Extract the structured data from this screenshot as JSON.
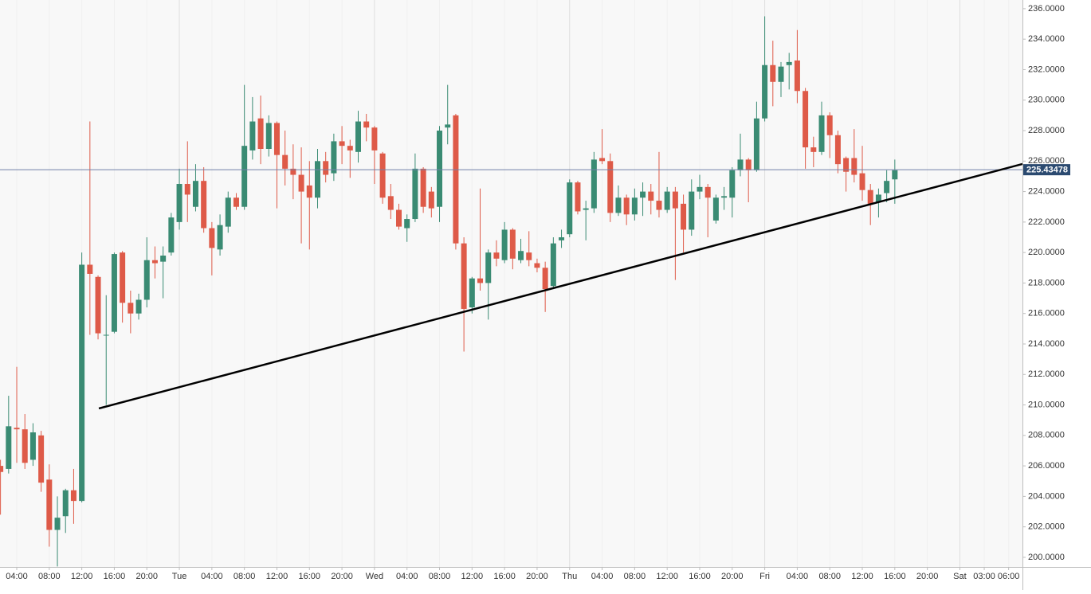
{
  "chart_data": {
    "type": "candlestick",
    "x": [
      2,
      3,
      4,
      5,
      6,
      7,
      8,
      9,
      10,
      11,
      12,
      13,
      14,
      15,
      16,
      17,
      18,
      19,
      20,
      21,
      22,
      23,
      24,
      25,
      26,
      27,
      28,
      29,
      30,
      31,
      32,
      33,
      34,
      35,
      36,
      37,
      38,
      39,
      40,
      41,
      42,
      43,
      44,
      45,
      46,
      47,
      48,
      49,
      50,
      51,
      52,
      53,
      54,
      55,
      56,
      57,
      58,
      59,
      60,
      61,
      62,
      63,
      64,
      65,
      66,
      67,
      68,
      69,
      70,
      71,
      72,
      73,
      74,
      75,
      76,
      77,
      78,
      79,
      80,
      81,
      82,
      83,
      84,
      85,
      86,
      87,
      88,
      89,
      90,
      91,
      92,
      93,
      94,
      95,
      96,
      97,
      98,
      99,
      100,
      101,
      102,
      103,
      104,
      105,
      106,
      107,
      108,
      109,
      110,
      111,
      112
    ],
    "open": [
      206.0,
      205.8,
      208.5,
      208.4,
      206.4,
      208.0,
      205.1,
      201.8,
      202.7,
      204.4,
      203.7,
      219.2,
      218.4,
      214.6,
      214.8,
      220.0,
      216.7,
      216.0,
      216.9,
      219.5,
      219.4,
      220.0,
      222.0,
      224.5,
      223.0,
      224.7,
      221.6,
      220.2,
      221.7,
      223.6,
      223.0,
      226.7,
      228.8,
      226.8,
      228.5,
      226.4,
      225.5,
      225.1,
      224.4,
      223.6,
      226.0,
      225.2,
      227.3,
      227.0,
      226.6,
      228.6,
      228.2,
      226.5,
      223.7,
      222.8,
      221.6,
      222.2,
      225.5,
      224.0,
      223.0,
      228.2,
      229.0,
      220.6,
      216.4,
      218.3,
      218.0,
      220.0,
      219.5,
      221.5,
      219.5,
      220.0,
      219.3,
      219.0,
      217.8,
      220.8,
      221.2,
      224.6,
      222.8,
      222.9,
      226.2,
      226.0,
      222.6,
      223.6,
      222.5,
      223.6,
      224.0,
      223.4,
      222.8,
      224.0,
      223.2,
      221.5,
      224.0,
      224.3,
      222.1,
      223.6,
      223.6,
      225.4,
      226.1,
      225.4,
      228.8,
      232.3,
      231.2,
      232.3,
      232.6,
      230.6,
      226.9,
      226.6,
      229.0,
      227.7,
      226.2,
      226.2,
      225.2,
      224.1,
      223.3,
      223.9,
      224.8
    ],
    "high": [
      206.4,
      210.6,
      212.5,
      209.4,
      208.8,
      208.3,
      206.1,
      204.0,
      204.5,
      205.8,
      220.0,
      228.6,
      218.5,
      217.2,
      220.0,
      220.1,
      217.5,
      217.3,
      221.0,
      220.4,
      220.4,
      222.6,
      225.5,
      227.3,
      225.8,
      225.6,
      222.0,
      222.5,
      224.0,
      223.9,
      231.0,
      230.2,
      230.3,
      229.0,
      228.6,
      228.0,
      227.1,
      226.9,
      226.0,
      226.8,
      226.6,
      227.8,
      228.3,
      227.4,
      229.3,
      229.1,
      228.3,
      226.6,
      224.5,
      223.2,
      222.5,
      226.5,
      225.6,
      224.3,
      228.3,
      231.0,
      229.1,
      221.0,
      218.4,
      224.2,
      220.2,
      220.8,
      222.0,
      221.6,
      220.9,
      221.4,
      219.6,
      219.4,
      221.0,
      221.5,
      224.8,
      224.7,
      223.4,
      226.6,
      228.1,
      226.5,
      224.4,
      223.8,
      224.2,
      224.6,
      224.5,
      226.6,
      224.3,
      224.3,
      223.8,
      224.8,
      225.1,
      224.5,
      223.8,
      224.3,
      225.6,
      227.8,
      226.2,
      229.9,
      235.5,
      233.9,
      232.5,
      233.1,
      234.6,
      230.8,
      227.6,
      229.9,
      229.2,
      228.0,
      226.3,
      228.1,
      227.0,
      224.5,
      224.2,
      225.4,
      226.1
    ],
    "low": [
      202.8,
      205.5,
      206.2,
      205.8,
      206.0,
      204.3,
      200.7,
      199.4,
      201.6,
      202.2,
      203.6,
      214.6,
      214.3,
      210.0,
      214.7,
      215.4,
      214.7,
      215.6,
      216.4,
      218.3,
      217.0,
      219.8,
      221.5,
      222.0,
      222.7,
      221.3,
      218.5,
      219.8,
      221.3,
      222.8,
      222.8,
      226.1,
      225.8,
      226.3,
      222.9,
      224.4,
      223.5,
      220.6,
      220.2,
      222.9,
      224.6,
      224.7,
      225.8,
      224.9,
      225.9,
      227.3,
      224.5,
      223.2,
      222.2,
      221.5,
      220.7,
      222.0,
      222.6,
      222.3,
      222.0,
      227.1,
      220.2,
      213.5,
      216.0,
      217.5,
      215.6,
      219.1,
      219.3,
      218.9,
      219.3,
      219.1,
      218.7,
      216.1,
      217.6,
      220.3,
      221.0,
      222.5,
      220.8,
      222.6,
      225.8,
      222.0,
      222.4,
      221.8,
      222.1,
      222.4,
      222.5,
      222.3,
      222.6,
      218.2,
      220.0,
      221.1,
      223.5,
      221.0,
      221.9,
      222.8,
      222.3,
      225.0,
      223.3,
      225.3,
      228.6,
      229.6,
      230.2,
      230.7,
      229.8,
      225.5,
      225.6,
      226.4,
      226.2,
      225.2,
      224.0,
      224.6,
      223.4,
      221.8,
      222.3,
      223.3,
      223.2
    ],
    "close": [
      205.6,
      208.6,
      208.4,
      206.2,
      208.2,
      204.9,
      201.8,
      202.6,
      204.4,
      203.7,
      219.2,
      218.6,
      214.7,
      214.6,
      219.9,
      216.7,
      216.0,
      216.9,
      219.5,
      219.3,
      219.8,
      222.3,
      224.5,
      223.8,
      224.7,
      221.6,
      220.3,
      221.8,
      223.6,
      223.0,
      227.0,
      228.6,
      226.8,
      228.5,
      226.4,
      225.5,
      225.1,
      224.0,
      223.6,
      226.0,
      225.1,
      227.3,
      227.0,
      226.7,
      228.6,
      228.2,
      226.7,
      223.6,
      222.8,
      221.7,
      222.2,
      225.5,
      223.0,
      222.9,
      228.0,
      228.4,
      220.6,
      216.3,
      218.3,
      218.0,
      220.0,
      219.6,
      221.5,
      219.6,
      220.1,
      219.5,
      219.0,
      217.6,
      220.6,
      221.0,
      224.6,
      222.7,
      222.9,
      226.1,
      226.0,
      222.6,
      223.6,
      222.5,
      223.6,
      224.0,
      223.4,
      222.8,
      224.0,
      222.9,
      221.5,
      224.0,
      224.3,
      223.6,
      223.6,
      223.7,
      225.4,
      226.1,
      225.4,
      228.8,
      232.3,
      231.2,
      232.2,
      232.5,
      230.6,
      226.9,
      226.6,
      229.0,
      227.7,
      225.8,
      225.3,
      225.1,
      224.1,
      223.2,
      223.8,
      224.7,
      225.4
    ],
    "up_color": "#3a8b73",
    "down_color": "#de5a48",
    "xlim": [
      1.94,
      127.7
    ],
    "ylim": [
      199.37,
      236.57
    ],
    "xticks": [
      {
        "value": 4,
        "label": "04:00"
      },
      {
        "value": 8,
        "label": "08:00"
      },
      {
        "value": 12,
        "label": "12:00"
      },
      {
        "value": 16,
        "label": "16:00"
      },
      {
        "value": 20,
        "label": "20:00"
      },
      {
        "value": 24,
        "label": "Tue"
      },
      {
        "value": 28,
        "label": "04:00"
      },
      {
        "value": 32,
        "label": "08:00"
      },
      {
        "value": 36,
        "label": "12:00"
      },
      {
        "value": 40,
        "label": "16:00"
      },
      {
        "value": 44,
        "label": "20:00"
      },
      {
        "value": 48,
        "label": "Wed"
      },
      {
        "value": 52,
        "label": "04:00"
      },
      {
        "value": 56,
        "label": "08:00"
      },
      {
        "value": 60,
        "label": "12:00"
      },
      {
        "value": 64,
        "label": "16:00"
      },
      {
        "value": 68,
        "label": "20:00"
      },
      {
        "value": 72,
        "label": "Thu"
      },
      {
        "value": 76,
        "label": "04:00"
      },
      {
        "value": 80,
        "label": "08:00"
      },
      {
        "value": 84,
        "label": "12:00"
      },
      {
        "value": 88,
        "label": "16:00"
      },
      {
        "value": 92,
        "label": "20:00"
      },
      {
        "value": 96,
        "label": "Fri"
      },
      {
        "value": 100,
        "label": "04:00"
      },
      {
        "value": 104,
        "label": "08:00"
      },
      {
        "value": 108,
        "label": "12:00"
      },
      {
        "value": 112,
        "label": "16:00"
      },
      {
        "value": 116,
        "label": "20:00"
      },
      {
        "value": 120,
        "label": "Sat"
      },
      {
        "value": 123,
        "label": "03:00"
      },
      {
        "value": 126,
        "label": "06:00"
      }
    ],
    "yticks": [
      {
        "value": 200,
        "label": "200.0000"
      },
      {
        "value": 202,
        "label": "202.0000"
      },
      {
        "value": 204,
        "label": "204.0000"
      },
      {
        "value": 206,
        "label": "206.0000"
      },
      {
        "value": 208,
        "label": "208.0000"
      },
      {
        "value": 210,
        "label": "210.0000"
      },
      {
        "value": 212,
        "label": "212.0000"
      },
      {
        "value": 214,
        "label": "214.0000"
      },
      {
        "value": 216,
        "label": "216.0000"
      },
      {
        "value": 218,
        "label": "218.0000"
      },
      {
        "value": 220,
        "label": "220.0000"
      },
      {
        "value": 222,
        "label": "222.0000"
      },
      {
        "value": 224,
        "label": "224.0000"
      },
      {
        "value": 226,
        "label": "226.0000"
      },
      {
        "value": 228,
        "label": "228.0000"
      },
      {
        "value": 230,
        "label": "230.0000"
      },
      {
        "value": 232,
        "label": "232.0000"
      },
      {
        "value": 234,
        "label": "234.0000"
      },
      {
        "value": 236,
        "label": "236.0000"
      }
    ],
    "grid": true,
    "current_price": 225.43478,
    "current_price_color": "#7180a8",
    "trendline": {
      "x": [
        14.1,
        127.7
      ],
      "y": [
        209.77,
        225.81
      ],
      "color": "#000000"
    }
  }
}
